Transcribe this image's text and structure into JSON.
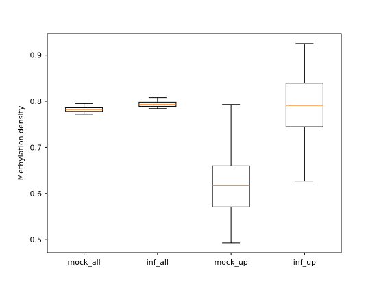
{
  "chart_data": {
    "type": "boxplot",
    "title": "",
    "xlabel": "",
    "ylabel": "Methylation density",
    "categories": [
      "mock_all",
      "inf_all",
      "mock_up",
      "inf_up"
    ],
    "yticks": [
      "0.5",
      "0.6",
      "0.7",
      "0.8",
      "0.9"
    ],
    "ylim": [
      0.472,
      0.947
    ],
    "grid": false,
    "boxes": [
      {
        "category": "mock_all",
        "whisker_low": 0.772,
        "q1": 0.778,
        "median": 0.782,
        "q3": 0.786,
        "whisker_high": 0.795
      },
      {
        "category": "inf_all",
        "whisker_low": 0.784,
        "q1": 0.789,
        "median": 0.793,
        "q3": 0.798,
        "whisker_high": 0.808
      },
      {
        "category": "mock_up",
        "whisker_low": 0.493,
        "q1": 0.571,
        "median": 0.617,
        "q3": 0.66,
        "whisker_high": 0.793
      },
      {
        "category": "inf_up",
        "whisker_low": 0.627,
        "q1": 0.745,
        "median": 0.791,
        "q3": 0.839,
        "whisker_high": 0.925
      }
    ],
    "colors": {
      "box": "#000000",
      "median": "#ff7f0e",
      "axis": "#000000"
    }
  }
}
